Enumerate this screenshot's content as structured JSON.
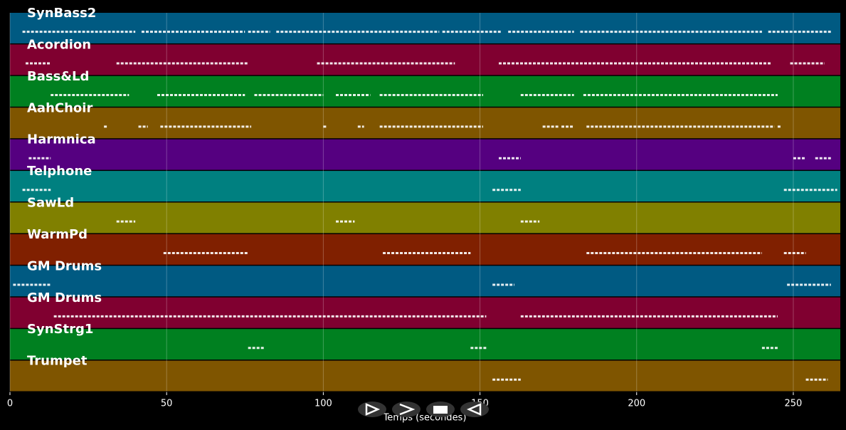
{
  "chart_data": {
    "type": "pianoroll",
    "x_label": "Temps (secondes)",
    "xlim": [
      0,
      265
    ],
    "xticks": [
      0,
      50,
      100,
      150,
      200,
      250
    ],
    "grid": true,
    "series": [
      {
        "name": "SynBass2",
        "color": "#005a82",
        "notes": [
          [
            4,
            40
          ],
          [
            42,
            75
          ],
          [
            76,
            83
          ],
          [
            85,
            137
          ],
          [
            138,
            157
          ],
          [
            159,
            180
          ],
          [
            182,
            240
          ],
          [
            242,
            262
          ]
        ]
      },
      {
        "name": "Acordion",
        "color": "#800030",
        "notes": [
          [
            5,
            13
          ],
          [
            34,
            76
          ],
          [
            98,
            142
          ],
          [
            156,
            243
          ],
          [
            249,
            260
          ]
        ]
      },
      {
        "name": "Bass&Ld",
        "color": "#008020",
        "notes": [
          [
            13,
            38
          ],
          [
            47,
            75
          ],
          [
            78,
            100
          ],
          [
            104,
            115
          ],
          [
            118,
            151
          ],
          [
            163,
            180
          ],
          [
            183,
            245
          ]
        ]
      },
      {
        "name": "AahChoir",
        "color": "#7f5500",
        "notes": [
          [
            30,
            31
          ],
          [
            41,
            44
          ],
          [
            48,
            77
          ],
          [
            100,
            101
          ],
          [
            111,
            113
          ],
          [
            118,
            151
          ],
          [
            170,
            175
          ],
          [
            176,
            180
          ],
          [
            184,
            244
          ],
          [
            245,
            246
          ]
        ]
      },
      {
        "name": "Harmnica",
        "color": "#550080",
        "notes": [
          [
            6,
            13
          ],
          [
            156,
            163
          ],
          [
            250,
            254
          ],
          [
            257,
            262
          ]
        ]
      },
      {
        "name": "Telphone",
        "color": "#008080",
        "notes": [
          [
            4,
            13
          ],
          [
            154,
            163
          ],
          [
            247,
            264
          ]
        ]
      },
      {
        "name": "SawLd",
        "color": "#808000",
        "notes": [
          [
            34,
            40
          ],
          [
            104,
            110
          ],
          [
            163,
            169
          ]
        ]
      },
      {
        "name": "WarmPd",
        "color": "#802000",
        "notes": [
          [
            49,
            76
          ],
          [
            119,
            147
          ],
          [
            184,
            240
          ],
          [
            247,
            254
          ]
        ]
      },
      {
        "name": "GM Drums",
        "color": "#005a82",
        "notes": [
          [
            1,
            13
          ],
          [
            154,
            161
          ],
          [
            248,
            262
          ]
        ]
      },
      {
        "name": "GM Drums",
        "color": "#800030",
        "notes": [
          [
            14,
            152
          ],
          [
            163,
            245
          ]
        ]
      },
      {
        "name": "SynStrg1",
        "color": "#008020",
        "notes": [
          [
            76,
            81
          ],
          [
            147,
            152
          ],
          [
            240,
            245
          ]
        ]
      },
      {
        "name": "Trumpet",
        "color": "#7f5500",
        "notes": [
          [
            154,
            163
          ],
          [
            254,
            261
          ]
        ]
      }
    ]
  }
}
